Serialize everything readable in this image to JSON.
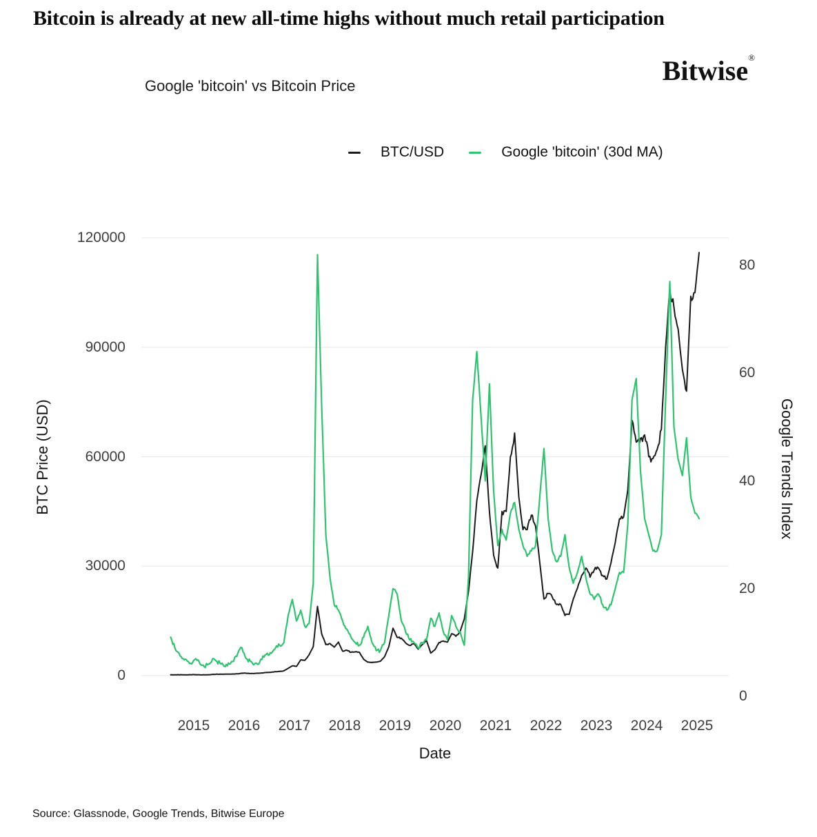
{
  "header": {
    "title": "Bitcoin is already at new all-time highs without much retail participation",
    "brand": "Bitwise",
    "brand_reg": "®"
  },
  "chart": {
    "subtitle": "Google 'bitcoin' vs Bitcoin Price"
  },
  "legend": [
    {
      "label": "BTC/USD",
      "color": "#1a1a1a"
    },
    {
      "label": "Google 'bitcoin' (30d MA)",
      "color": "#2ec46f"
    }
  ],
  "footer": {
    "source": "Source: Glassnode, Google Trends, Bitwise Europe"
  },
  "chart_data": {
    "type": "line",
    "title": "Google 'bitcoin' vs Bitcoin Price",
    "xlabel": "Date",
    "x_ticks": [
      2015,
      2016,
      2017,
      2018,
      2019,
      2020,
      2021,
      2022,
      2023,
      2024,
      2025
    ],
    "x_range_years": [
      2015.0,
      2025.6
    ],
    "grid": "horizontal-left-axis-only",
    "legend_position": "top",
    "background": "#ffffff",
    "gridline_color": "#e7e7e7",
    "left_axis": {
      "label": "BTC Price (USD)",
      "ticks": [
        0,
        30000,
        60000,
        90000,
        120000
      ],
      "range": [
        0,
        123000
      ]
    },
    "right_axis": {
      "label": "Google Trends Index",
      "ticks": [
        0,
        20,
        40,
        60,
        80
      ],
      "range": [
        0,
        87
      ]
    },
    "series": [
      {
        "name": "BTC/USD",
        "axis": "left",
        "color": "#1a1a1a",
        "x_start_year": 2015,
        "x_step_months": 1,
        "values": [
          230,
          250,
          245,
          235,
          235,
          255,
          280,
          230,
          235,
          270,
          350,
          430,
          390,
          420,
          415,
          450,
          510,
          680,
          660,
          580,
          610,
          660,
          740,
          900,
          950,
          1100,
          1150,
          1350,
          2000,
          2700,
          2550,
          4300,
          4200,
          5700,
          8000,
          19000,
          11500,
          8500,
          8800,
          7800,
          9200,
          6700,
          7000,
          6400,
          6500,
          6400,
          4500,
          3700,
          3600,
          3700,
          3950,
          5200,
          7900,
          13000,
          10500,
          10300,
          9000,
          8300,
          8800,
          7300,
          8500,
          9600,
          6200,
          7100,
          9100,
          9500,
          9200,
          11500,
          10800,
          12000,
          15500,
          23000,
          34000,
          48000,
          55000,
          63000,
          45000,
          33000,
          29500,
          45000,
          45000,
          60000,
          66500,
          49000,
          40000,
          40000,
          44000,
          41000,
          31000,
          21000,
          22500,
          21500,
          19500,
          19500,
          16500,
          16800,
          21000,
          24000,
          27500,
          29500,
          27000,
          29000,
          29500,
          27500,
          26500,
          31000,
          36500,
          43000,
          43500,
          51000,
          70000,
          64000,
          65000,
          66000,
          60000,
          59500,
          62000,
          67500,
          90000,
          106000,
          101000,
          95000,
          84000,
          78000,
          104000,
          105000,
          116000
        ]
      },
      {
        "name": "Google 'bitcoin' (30d MA)",
        "axis": "right",
        "color": "#2ec46f",
        "x_start_year": 2015,
        "x_step_months": 1,
        "values": [
          11,
          9,
          8,
          7,
          6.5,
          6,
          7,
          6,
          5.5,
          6,
          7,
          6.5,
          6,
          5.5,
          6,
          6.5,
          8,
          9,
          7,
          6.5,
          6,
          6,
          7.5,
          8,
          8,
          9,
          9.5,
          10,
          15,
          18,
          14,
          16,
          13,
          13.5,
          21,
          82,
          54,
          30,
          22,
          17,
          16,
          14,
          12.5,
          11,
          10,
          9.5,
          11,
          13,
          10,
          8.5,
          8.5,
          10,
          15,
          20,
          19,
          14,
          12,
          10.5,
          10,
          9,
          10,
          10.5,
          14.5,
          13,
          15.5,
          12,
          10.5,
          15,
          13,
          12,
          9.5,
          22,
          55,
          64,
          52,
          40,
          58,
          38,
          28,
          31,
          29,
          34,
          36,
          31,
          28,
          26,
          27,
          28,
          37,
          46,
          33,
          27,
          25,
          26,
          30,
          24,
          21,
          23,
          26,
          22,
          19,
          18,
          19,
          17,
          16,
          17,
          20,
          23,
          23,
          32,
          55,
          59,
          42,
          33,
          30,
          27,
          27,
          30,
          55,
          77,
          50,
          44,
          41,
          48,
          37,
          34,
          33
        ]
      }
    ]
  }
}
